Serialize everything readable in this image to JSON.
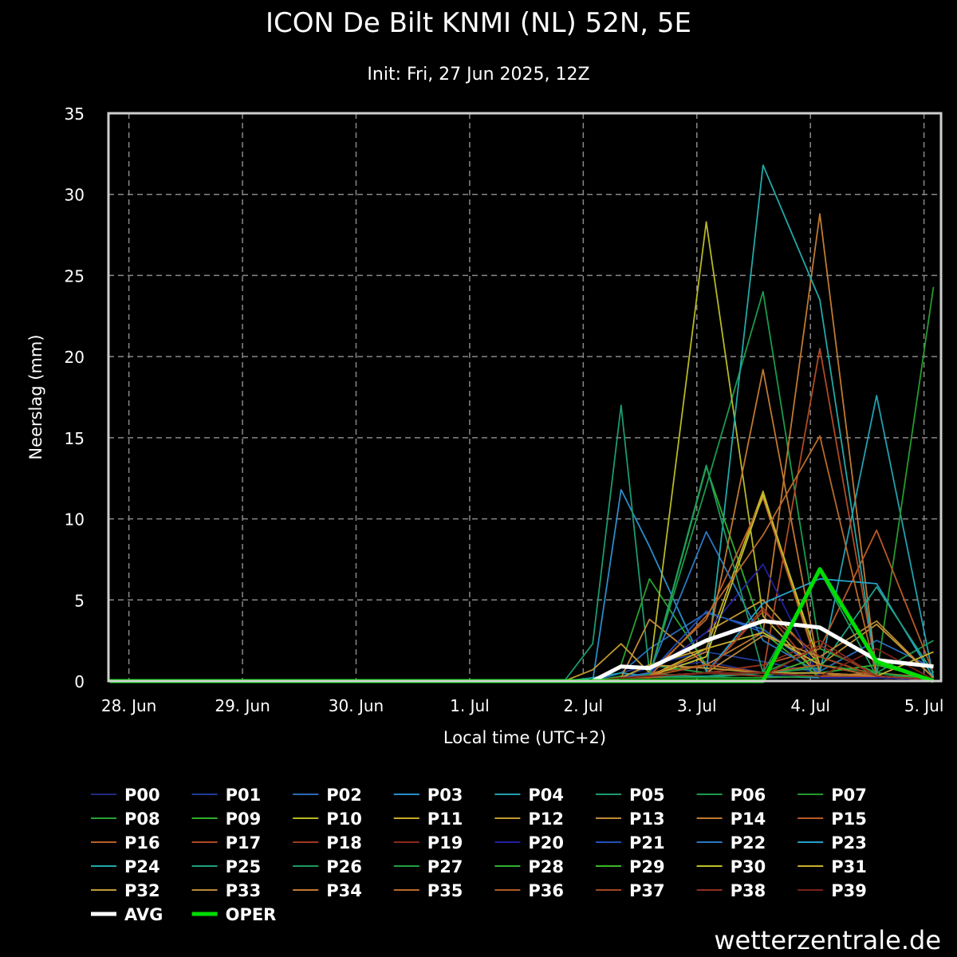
{
  "header": {
    "title": "ICON De Bilt KNMI (NL) 52N, 5E",
    "subtitle": "Init: Fri, 27 Jun 2025, 12Z"
  },
  "brand": "wetterzentrale.de",
  "chart_data": {
    "type": "line",
    "title": "ICON De Bilt KNMI (NL) 52N, 5E",
    "subtitle": "Init: Fri, 27 Jun 2025, 12Z",
    "xlabel": "Local time (UTC+2)",
    "ylabel": "Neerslag (mm)",
    "ylim": [
      0,
      35
    ],
    "yticks": [
      0,
      5,
      10,
      15,
      20,
      25,
      30,
      35
    ],
    "x_unit": "days after 28 Jun 00:00 local",
    "xlim": [
      -0.18,
      7.15
    ],
    "xticks": [
      {
        "label": "28. Jun",
        "value": 0
      },
      {
        "label": "29. Jun",
        "value": 1
      },
      {
        "label": "30. Jun",
        "value": 2
      },
      {
        "label": "1. Jul",
        "value": 3
      },
      {
        "label": "2. Jul",
        "value": 4
      },
      {
        "label": "3. Jul",
        "value": 5
      },
      {
        "label": "4. Jul",
        "value": 6
      },
      {
        "label": "5. Jul",
        "value": 7
      }
    ],
    "grid": true,
    "x": [
      -0.167,
      0.083,
      0.333,
      0.583,
      0.833,
      1.083,
      1.333,
      1.583,
      1.833,
      2.083,
      2.333,
      2.583,
      2.833,
      3.083,
      3.333,
      3.583,
      3.833,
      4.083,
      4.333,
      4.583,
      5.083,
      5.583,
      6.083,
      6.583,
      7.083
    ],
    "series": [
      {
        "name": "P00",
        "color": "#1c2a80",
        "values": [
          0,
          0,
          0,
          0,
          0,
          0,
          0,
          0,
          0,
          0,
          0,
          0,
          0,
          0,
          0,
          0,
          0,
          0,
          0.3,
          0.8,
          1.2,
          0.5,
          0.2,
          0.2,
          0.1
        ]
      },
      {
        "name": "P01",
        "color": "#1f3c9a",
        "values": [
          0,
          0,
          0,
          0,
          0,
          0,
          0,
          0,
          0,
          0,
          0,
          0,
          0,
          0,
          0,
          0,
          0,
          0,
          0.5,
          1.0,
          1.8,
          1.2,
          0.5,
          0.3,
          0.1
        ]
      },
      {
        "name": "P02",
        "color": "#2a6ab8",
        "values": [
          0,
          0,
          0,
          0,
          0,
          0,
          0,
          0,
          0,
          0,
          0,
          0,
          0,
          0,
          0,
          0,
          0,
          0,
          0.5,
          2.0,
          4.2,
          3.2,
          0.6,
          2.5,
          0.8
        ]
      },
      {
        "name": "P03",
        "color": "#2b8cc9",
        "values": [
          0,
          0,
          0,
          0,
          0,
          0,
          0,
          0,
          0,
          0,
          0,
          0,
          0,
          0,
          0,
          0,
          0,
          0,
          11.8,
          8.3,
          0.6,
          0.3,
          0.2,
          0.2,
          0.1
        ]
      },
      {
        "name": "P04",
        "color": "#22a0b0",
        "values": [
          0,
          0,
          0,
          0,
          0,
          0,
          0,
          0,
          0,
          0,
          0,
          0,
          0,
          0,
          0,
          0,
          0,
          0.2,
          0.5,
          0.3,
          0.3,
          0.5,
          0.5,
          17.6,
          0.2
        ]
      },
      {
        "name": "P05",
        "color": "#1c9a70",
        "values": [
          0,
          0,
          0,
          0,
          0,
          0,
          0,
          0,
          0,
          0,
          0,
          0,
          0,
          0,
          0,
          0,
          0,
          2.3,
          17.0,
          0.5,
          0.2,
          0.5,
          0.3,
          0.2,
          0.1
        ]
      },
      {
        "name": "P06",
        "color": "#1a9a4e",
        "values": [
          0,
          0,
          0,
          0,
          0,
          0,
          0,
          0,
          0,
          0,
          0,
          0,
          0,
          0,
          0,
          0,
          0,
          0,
          0.2,
          0.4,
          12.0,
          24.0,
          2.0,
          0.5,
          2.5
        ]
      },
      {
        "name": "P07",
        "color": "#259a2e",
        "values": [
          0,
          0,
          0,
          0,
          0,
          0,
          0,
          0,
          0,
          0,
          0,
          0,
          0,
          0,
          0,
          0,
          0,
          0,
          0.2,
          0.2,
          0.2,
          0.2,
          0.3,
          0.3,
          24.3
        ]
      },
      {
        "name": "P08",
        "color": "#28a030",
        "values": [
          0,
          0,
          0,
          0,
          0,
          0,
          0,
          0,
          0,
          0,
          0,
          0,
          0,
          0,
          0,
          0,
          0,
          0,
          1.0,
          6.3,
          1.0,
          0.5,
          2.0,
          0.5,
          0.1
        ]
      },
      {
        "name": "P09",
        "color": "#2fb02a",
        "values": [
          0,
          0,
          0,
          0,
          0,
          0,
          0,
          0,
          0,
          0,
          0,
          0,
          0,
          0,
          0,
          0,
          0,
          0,
          0.3,
          0.2,
          13.2,
          3.0,
          0.2,
          0.2,
          0.1
        ]
      },
      {
        "name": "P10",
        "color": "#b8b825",
        "values": [
          0,
          0,
          0,
          0,
          0,
          0,
          0,
          0,
          0,
          0,
          0,
          0,
          0,
          0,
          0,
          0,
          0,
          0,
          0.2,
          0.5,
          28.3,
          4.0,
          0.3,
          0.2,
          0.1
        ]
      },
      {
        "name": "P11",
        "color": "#c8a828",
        "values": [
          0,
          0,
          0,
          0,
          0,
          0,
          0,
          0,
          0,
          0,
          0,
          0,
          0,
          0,
          0,
          0,
          0,
          0,
          0.2,
          1.0,
          2.0,
          11.7,
          0.5,
          0.2,
          0.1
        ]
      },
      {
        "name": "P12",
        "color": "#c09830",
        "values": [
          0,
          0,
          0,
          0,
          0,
          0,
          0,
          0,
          0,
          0,
          0,
          0,
          0,
          0,
          0,
          0,
          0,
          0.7,
          2.3,
          0.5,
          3.0,
          5.0,
          1.0,
          3.5,
          0.2
        ]
      },
      {
        "name": "P13",
        "color": "#c08a35",
        "values": [
          0,
          0,
          0,
          0,
          0,
          0,
          0,
          0,
          0,
          0,
          0,
          0,
          0,
          0,
          0,
          0,
          0,
          0,
          0.2,
          3.8,
          1.0,
          0.5,
          0.3,
          0.5,
          0.1
        ]
      },
      {
        "name": "P14",
        "color": "#c07a30",
        "values": [
          0,
          0,
          0,
          0,
          0,
          0,
          0,
          0,
          0,
          0,
          0,
          0,
          0,
          0,
          0,
          0,
          0,
          0,
          0.2,
          0.5,
          1.0,
          3.0,
          28.8,
          0.5,
          0.2
        ]
      },
      {
        "name": "P15",
        "color": "#b85a28",
        "values": [
          0,
          0,
          0,
          0,
          0,
          0,
          0,
          0,
          0,
          0,
          0,
          0,
          0,
          0,
          0,
          0,
          0,
          0,
          0.2,
          0.2,
          0.5,
          1.0,
          2.0,
          9.3,
          0.5
        ]
      },
      {
        "name": "P16",
        "color": "#b86028",
        "values": [
          0,
          0,
          0,
          0,
          0,
          0,
          0,
          0,
          0,
          0,
          0,
          0,
          0,
          0,
          0,
          0,
          0,
          0,
          0.2,
          0.5,
          3.8,
          11.3,
          0.5,
          0.2,
          0.1
        ]
      },
      {
        "name": "P17",
        "color": "#b04a25",
        "values": [
          0,
          0,
          0,
          0,
          0,
          0,
          0,
          0,
          0,
          0,
          0,
          0,
          0,
          0,
          0,
          0,
          0,
          0,
          0.2,
          0.5,
          1.0,
          0.5,
          20.5,
          0.5,
          0.1
        ]
      },
      {
        "name": "P18",
        "color": "#a03a20",
        "values": [
          0,
          0,
          0,
          0,
          0,
          0,
          0,
          0,
          0,
          0,
          0,
          0,
          0,
          0,
          0,
          0,
          0,
          0,
          0.2,
          0.3,
          0.5,
          4.5,
          0.3,
          0.2,
          0.1
        ]
      },
      {
        "name": "P19",
        "color": "#8a2a1a",
        "values": [
          0,
          0,
          0,
          0,
          0,
          0,
          0,
          0,
          0,
          0,
          0,
          0,
          0,
          0,
          0,
          0,
          0,
          0,
          0.2,
          0.3,
          0.5,
          1.0,
          2.5,
          0.3,
          0.1
        ]
      },
      {
        "name": "P20",
        "color": "#2020a0",
        "values": [
          0,
          0,
          0,
          0,
          0,
          0,
          0,
          0,
          0,
          0,
          0,
          0,
          0,
          0,
          0,
          0,
          0,
          0,
          0.2,
          0.5,
          3.0,
          7.2,
          0.2,
          0.2,
          0.1
        ]
      },
      {
        "name": "P21",
        "color": "#2050b8",
        "values": [
          0,
          0,
          0,
          0,
          0,
          0,
          0,
          0,
          0,
          0,
          0,
          0,
          0,
          0,
          0,
          0,
          0,
          0,
          0.2,
          0.5,
          4.3,
          3.0,
          1.0,
          0.3,
          0.1
        ]
      },
      {
        "name": "P22",
        "color": "#2a78c0",
        "values": [
          0,
          0,
          0,
          0,
          0,
          0,
          0,
          0,
          0,
          0,
          0,
          0,
          0,
          0,
          0,
          0,
          0,
          0,
          0.2,
          0.5,
          9.2,
          2.5,
          0.5,
          0.3,
          0.1
        ]
      },
      {
        "name": "P23",
        "color": "#25a0c8",
        "values": [
          0,
          0,
          0,
          0,
          0,
          0,
          0,
          0,
          0,
          0,
          0,
          0,
          0,
          0,
          0,
          0,
          0,
          0,
          0.2,
          0.3,
          0.5,
          4.8,
          6.3,
          6.0,
          0.2
        ]
      },
      {
        "name": "P24",
        "color": "#22a8a8",
        "values": [
          0,
          0,
          0,
          0,
          0,
          0,
          0,
          0,
          0,
          0,
          0,
          0,
          0,
          0,
          0,
          0,
          0,
          0,
          0.2,
          0.3,
          0.5,
          31.8,
          23.5,
          0.5,
          0.1
        ]
      },
      {
        "name": "P25",
        "color": "#20a080",
        "values": [
          0,
          0,
          0,
          0,
          0,
          0,
          0,
          0,
          0,
          0,
          0,
          0,
          0,
          0,
          0,
          0,
          0,
          0,
          0.2,
          0.3,
          0.3,
          0.5,
          0.8,
          5.8,
          0.5
        ]
      },
      {
        "name": "P26",
        "color": "#1e9a60",
        "values": [
          0,
          0,
          0,
          0,
          0,
          0,
          0,
          0,
          0,
          0,
          0,
          0,
          0,
          0,
          0,
          0,
          0,
          0,
          0.2,
          0.3,
          13.3,
          0.5,
          6.8,
          0.3,
          0.2
        ]
      },
      {
        "name": "P27",
        "color": "#22a040",
        "values": [
          0,
          0,
          0,
          0,
          0,
          0,
          0,
          0,
          0,
          0,
          0,
          0,
          0,
          0,
          0,
          0,
          0,
          0,
          0.2,
          1.0,
          0.5,
          0.3,
          1.0,
          0.5,
          0.1
        ]
      },
      {
        "name": "P28",
        "color": "#30b030",
        "values": [
          0,
          0,
          0,
          0,
          0,
          0,
          0,
          0,
          0,
          0,
          0,
          0,
          0,
          0,
          0,
          0,
          0,
          0,
          0.2,
          0.3,
          0.5,
          0.5,
          0.5,
          1.0,
          0.1
        ]
      },
      {
        "name": "P29",
        "color": "#3cb828",
        "values": [
          0,
          0,
          0,
          0,
          0,
          0,
          0,
          0,
          0,
          0,
          0,
          0,
          0,
          0,
          0,
          0,
          0,
          0,
          0.2,
          0.3,
          0.5,
          0.3,
          1.5,
          0.3,
          0.1
        ]
      },
      {
        "name": "P30",
        "color": "#c0c028",
        "values": [
          0,
          0,
          0,
          0,
          0,
          0,
          0,
          0,
          0,
          0,
          0,
          0,
          0,
          0,
          0,
          0,
          0,
          0,
          0.2,
          0.3,
          1.5,
          11.5,
          1.0,
          0.3,
          0.1
        ]
      },
      {
        "name": "P31",
        "color": "#c8b030",
        "values": [
          0,
          0,
          0,
          0,
          0,
          0,
          0,
          0,
          0,
          0,
          0,
          0,
          0,
          0,
          0,
          0,
          0,
          0,
          0.2,
          0.3,
          2.0,
          3.0,
          1.0,
          0.3,
          1.8
        ]
      },
      {
        "name": "P32",
        "color": "#c09a35",
        "values": [
          0,
          0,
          0,
          0,
          0,
          0,
          0,
          0,
          0,
          0,
          0,
          0,
          0,
          0,
          0,
          0,
          0,
          0,
          0.2,
          1.0,
          0.8,
          0.5,
          0.5,
          0.3,
          0.1
        ]
      },
      {
        "name": "P33",
        "color": "#b88a38",
        "values": [
          0,
          0,
          0,
          0,
          0,
          0,
          0,
          0,
          0,
          0,
          0,
          0,
          0,
          0,
          0,
          0,
          0,
          0,
          0.2,
          0.3,
          0.5,
          2.8,
          1.5,
          3.7,
          0.2
        ]
      },
      {
        "name": "P34",
        "color": "#c07830",
        "values": [
          0,
          0,
          0,
          0,
          0,
          0,
          0,
          0,
          0,
          0,
          0,
          0,
          0,
          0,
          0,
          0,
          0,
          0,
          0.2,
          0.3,
          1.8,
          19.2,
          0.5,
          0.3,
          0.1
        ]
      },
      {
        "name": "P35",
        "color": "#b86a2a",
        "values": [
          0,
          0,
          0,
          0,
          0,
          0,
          0,
          0,
          0,
          0,
          0,
          0,
          0,
          0,
          0,
          0,
          0,
          0,
          0.2,
          0.3,
          4.0,
          9.0,
          15.1,
          0.3,
          0.1
        ]
      },
      {
        "name": "P36",
        "color": "#b05a25",
        "values": [
          0,
          0,
          0,
          0,
          0,
          0,
          0,
          0,
          0,
          0,
          0,
          0,
          0,
          0,
          0,
          0,
          0,
          0,
          0.2,
          0.3,
          1.0,
          0.5,
          1.0,
          0.3,
          0.1
        ]
      },
      {
        "name": "P37",
        "color": "#a04525",
        "values": [
          0,
          0,
          0,
          0,
          0,
          0,
          0,
          0,
          0,
          0,
          0,
          0,
          0,
          0,
          0,
          0,
          0,
          0,
          0.2,
          0.3,
          0.5,
          4.3,
          1.5,
          0.3,
          0.1
        ]
      },
      {
        "name": "P38",
        "color": "#902e22",
        "values": [
          0,
          0,
          0,
          0,
          0,
          0,
          0,
          0,
          0,
          0,
          0,
          0,
          0,
          0,
          0,
          0,
          0,
          0,
          0.2,
          0.3,
          0.5,
          0.3,
          2.2,
          0.3,
          0.1
        ]
      },
      {
        "name": "P39",
        "color": "#7a2018",
        "values": [
          0,
          0,
          0,
          0,
          0,
          0,
          0,
          0,
          0,
          0,
          0,
          0,
          0,
          0,
          0,
          0,
          0,
          0,
          0.2,
          0.3,
          0.5,
          0.5,
          0.3,
          2.0,
          0.1
        ]
      },
      {
        "name": "AVG",
        "color": "#ffffff",
        "width": 5,
        "values": [
          0,
          0,
          0,
          0,
          0,
          0,
          0,
          0,
          0,
          0,
          0,
          0,
          0,
          0,
          0,
          0,
          0,
          0,
          0.9,
          0.8,
          2.5,
          3.7,
          3.3,
          1.3,
          0.9
        ]
      },
      {
        "name": "OPER",
        "color": "#00dd00",
        "width": 5,
        "values": [
          0,
          0,
          0,
          0,
          0,
          0,
          0,
          0,
          0,
          0,
          0,
          0,
          0,
          0,
          0,
          0,
          0,
          0,
          0,
          0,
          0,
          0,
          6.9,
          1.2,
          0
        ]
      }
    ],
    "legend_placement": "bottom"
  }
}
